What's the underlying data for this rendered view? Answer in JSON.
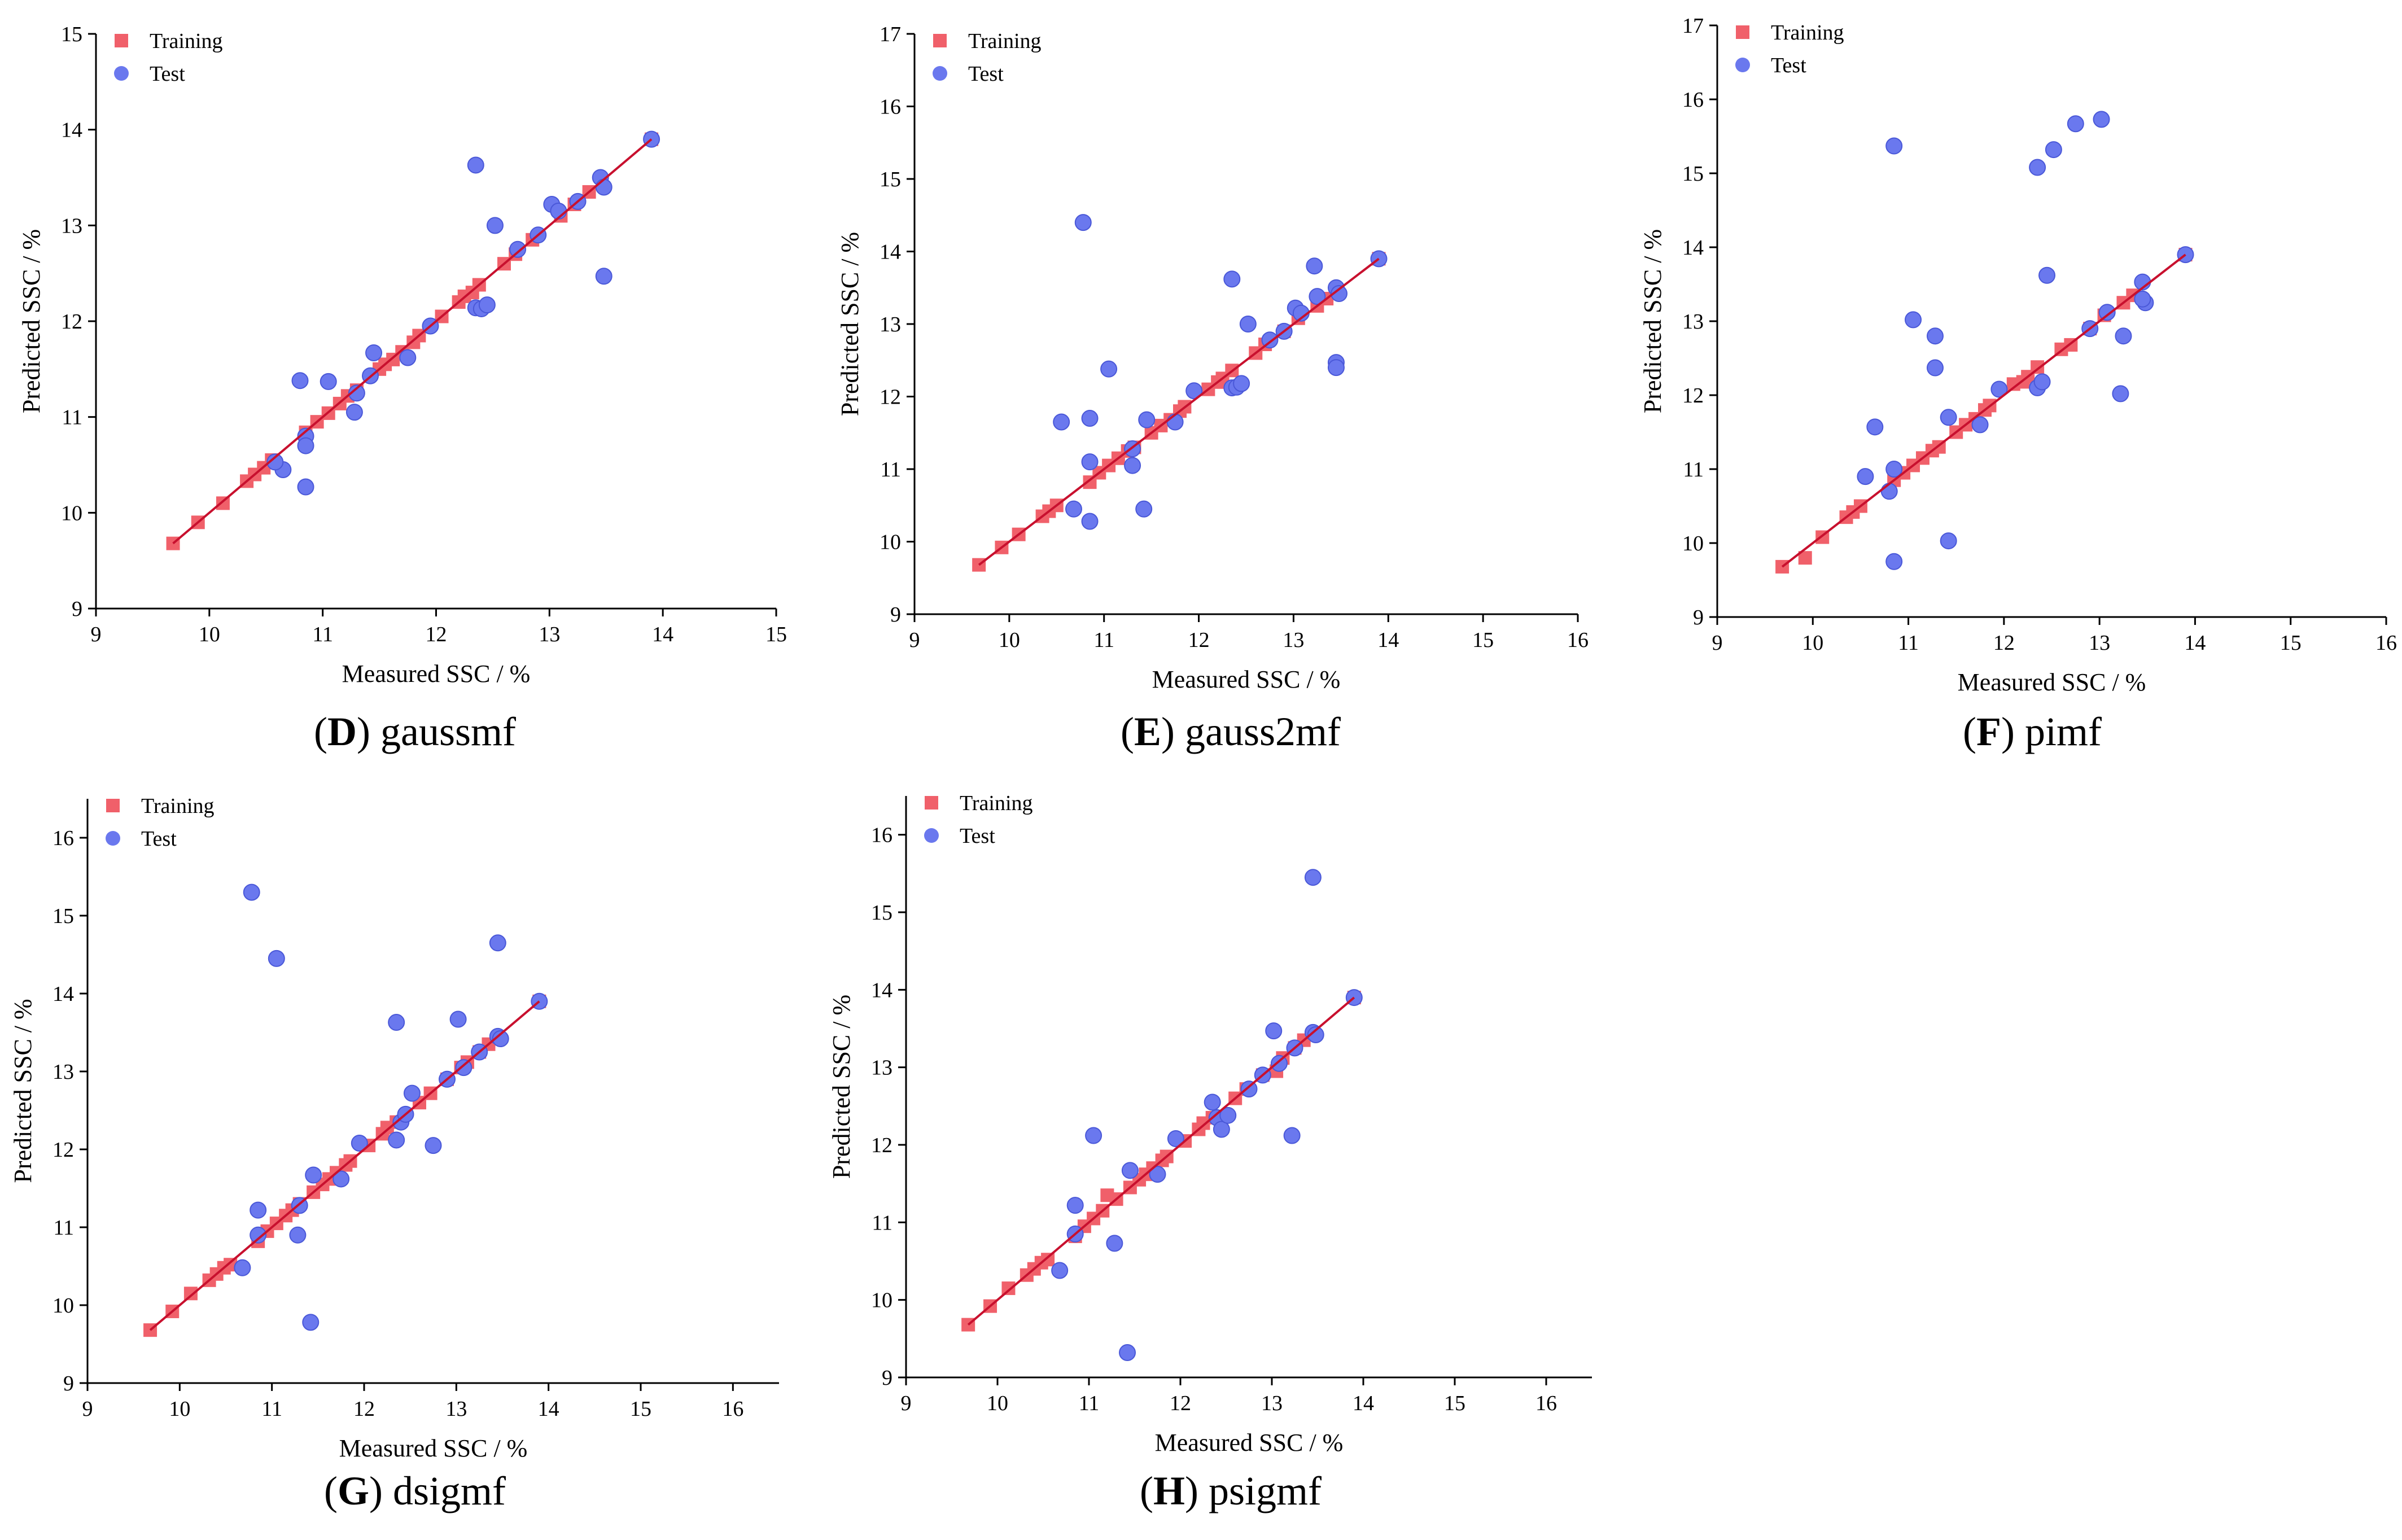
{
  "colors": {
    "training": "#f0606a",
    "test": "#6a78ee",
    "fit_line": "#c8102e"
  },
  "legend": {
    "training_label": "Training",
    "test_label": "Test"
  },
  "chart_data": [
    {
      "type": "scatter",
      "caption_letter": "D",
      "caption_name": "gaussmf",
      "xlabel": "Measured SSC / %",
      "ylabel": "Predicted  SSC / %",
      "xlim": [
        9,
        15
      ],
      "ylim": [
        9,
        15
      ],
      "xticks": [
        9,
        10,
        11,
        12,
        13,
        14,
        15
      ],
      "yticks": [
        9,
        10,
        11,
        12,
        13,
        14,
        15
      ],
      "training": [
        [
          9.68,
          9.68
        ],
        [
          9.9,
          9.9
        ],
        [
          10.12,
          10.1
        ],
        [
          10.33,
          10.33
        ],
        [
          10.4,
          10.4
        ],
        [
          10.48,
          10.47
        ],
        [
          10.55,
          10.55
        ],
        [
          10.85,
          10.84
        ],
        [
          10.95,
          10.95
        ],
        [
          11.05,
          11.04
        ],
        [
          11.15,
          11.14
        ],
        [
          11.22,
          11.22
        ],
        [
          11.3,
          11.28
        ],
        [
          11.5,
          11.5
        ],
        [
          11.55,
          11.55
        ],
        [
          11.62,
          11.6
        ],
        [
          11.7,
          11.68
        ],
        [
          11.8,
          11.78
        ],
        [
          11.85,
          11.85
        ],
        [
          12.05,
          12.05
        ],
        [
          12.2,
          12.2
        ],
        [
          12.25,
          12.26
        ],
        [
          12.32,
          12.3
        ],
        [
          12.38,
          12.38
        ],
        [
          12.6,
          12.6
        ],
        [
          12.7,
          12.7
        ],
        [
          12.85,
          12.85
        ],
        [
          13.1,
          13.1
        ],
        [
          13.22,
          13.22
        ],
        [
          13.35,
          13.35
        ],
        [
          13.9,
          13.9
        ]
      ],
      "test": [
        [
          10.8,
          11.38
        ],
        [
          11.05,
          11.37
        ],
        [
          10.85,
          10.8
        ],
        [
          10.85,
          10.7
        ],
        [
          10.85,
          10.27
        ],
        [
          10.65,
          10.45
        ],
        [
          10.58,
          10.53
        ],
        [
          11.28,
          11.05
        ],
        [
          11.3,
          11.25
        ],
        [
          11.42,
          11.43
        ],
        [
          11.45,
          11.67
        ],
        [
          11.75,
          11.62
        ],
        [
          11.95,
          11.95
        ],
        [
          12.35,
          12.14
        ],
        [
          12.4,
          12.13
        ],
        [
          12.45,
          12.17
        ],
        [
          12.35,
          13.63
        ],
        [
          12.52,
          13
        ],
        [
          12.72,
          12.75
        ],
        [
          12.9,
          12.9
        ],
        [
          13.02,
          13.22
        ],
        [
          13.08,
          13.15
        ],
        [
          13.25,
          13.25
        ],
        [
          13.45,
          13.5
        ],
        [
          13.48,
          13.4
        ],
        [
          13.48,
          12.47
        ],
        [
          13.9,
          13.9
        ]
      ],
      "fit_line": [
        [
          9.68,
          9.68
        ],
        [
          13.9,
          13.9
        ]
      ]
    },
    {
      "type": "scatter",
      "caption_letter": "E",
      "caption_name": "gauss2mf",
      "xlabel": "Measured SSC / %",
      "ylabel": "Predicted  SSC / %",
      "xlim": [
        9,
        16
      ],
      "ylim": [
        9,
        17
      ],
      "xticks": [
        9,
        10,
        11,
        12,
        13,
        14,
        15,
        16
      ],
      "yticks": [
        9,
        10,
        11,
        12,
        13,
        14,
        15,
        16,
        17
      ],
      "training": [
        [
          9.68,
          9.68
        ],
        [
          9.92,
          9.92
        ],
        [
          10.1,
          10.1
        ],
        [
          10.35,
          10.35
        ],
        [
          10.42,
          10.42
        ],
        [
          10.5,
          10.5
        ],
        [
          10.85,
          10.82
        ],
        [
          10.95,
          10.95
        ],
        [
          11.05,
          11.05
        ],
        [
          11.15,
          11.15
        ],
        [
          11.25,
          11.25
        ],
        [
          11.32,
          11.3
        ],
        [
          11.5,
          11.5
        ],
        [
          11.6,
          11.6
        ],
        [
          11.7,
          11.68
        ],
        [
          11.8,
          11.8
        ],
        [
          11.85,
          11.86
        ],
        [
          12.1,
          12.1
        ],
        [
          12.2,
          12.2
        ],
        [
          12.25,
          12.25
        ],
        [
          12.35,
          12.36
        ],
        [
          12.6,
          12.6
        ],
        [
          12.7,
          12.72
        ],
        [
          12.9,
          12.9
        ],
        [
          13.05,
          13.08
        ],
        [
          13.25,
          13.25
        ],
        [
          13.35,
          13.35
        ],
        [
          13.9,
          13.9
        ]
      ],
      "test": [
        [
          10.78,
          14.4
        ],
        [
          11.05,
          12.38
        ],
        [
          10.55,
          11.65
        ],
        [
          10.85,
          11.7
        ],
        [
          10.85,
          11.1
        ],
        [
          10.85,
          10.28
        ],
        [
          10.68,
          10.45
        ],
        [
          11.3,
          11.05
        ],
        [
          11.3,
          11.28
        ],
        [
          11.42,
          10.45
        ],
        [
          11.45,
          11.68
        ],
        [
          11.75,
          11.65
        ],
        [
          11.95,
          12.08
        ],
        [
          12.35,
          12.12
        ],
        [
          12.4,
          12.13
        ],
        [
          12.45,
          12.18
        ],
        [
          12.35,
          13.62
        ],
        [
          12.52,
          13
        ],
        [
          12.75,
          12.78
        ],
        [
          12.9,
          12.9
        ],
        [
          13.02,
          13.22
        ],
        [
          13.08,
          13.15
        ],
        [
          13.22,
          13.8
        ],
        [
          13.25,
          13.38
        ],
        [
          13.45,
          13.5
        ],
        [
          13.48,
          13.42
        ],
        [
          13.45,
          12.47
        ],
        [
          13.45,
          12.4
        ],
        [
          13.9,
          13.9
        ]
      ],
      "fit_line": [
        [
          9.68,
          9.68
        ],
        [
          13.9,
          13.9
        ]
      ]
    },
    {
      "type": "scatter",
      "caption_letter": "F",
      "caption_name": "pimf",
      "xlabel": "Measured SSC / %",
      "ylabel": "Predicted  SSC / %",
      "xlim": [
        9,
        16
      ],
      "ylim": [
        9,
        17
      ],
      "xticks": [
        9,
        10,
        11,
        12,
        13,
        14,
        15,
        16
      ],
      "yticks": [
        9,
        10,
        11,
        12,
        13,
        14,
        15,
        16,
        17
      ],
      "training": [
        [
          9.68,
          9.68
        ],
        [
          9.92,
          9.8
        ],
        [
          10.1,
          10.08
        ],
        [
          10.35,
          10.35
        ],
        [
          10.42,
          10.42
        ],
        [
          10.5,
          10.5
        ],
        [
          10.85,
          10.85
        ],
        [
          10.95,
          10.95
        ],
        [
          11.05,
          11.05
        ],
        [
          11.15,
          11.15
        ],
        [
          11.25,
          11.25
        ],
        [
          11.32,
          11.3
        ],
        [
          11.5,
          11.5
        ],
        [
          11.6,
          11.6
        ],
        [
          11.7,
          11.68
        ],
        [
          11.8,
          11.8
        ],
        [
          11.85,
          11.86
        ],
        [
          12.1,
          12.15
        ],
        [
          12.2,
          12.18
        ],
        [
          12.25,
          12.25
        ],
        [
          12.35,
          12.38
        ],
        [
          12.6,
          12.62
        ],
        [
          12.7,
          12.68
        ],
        [
          12.9,
          12.9
        ],
        [
          13.05,
          13.08
        ],
        [
          13.25,
          13.25
        ],
        [
          13.35,
          13.35
        ],
        [
          13.9,
          13.9
        ]
      ],
      "test": [
        [
          10.85,
          15.37
        ],
        [
          11.05,
          13.02
        ],
        [
          11.28,
          12.8
        ],
        [
          11.28,
          12.37
        ],
        [
          10.65,
          11.57
        ],
        [
          10.55,
          10.9
        ],
        [
          10.85,
          11
        ],
        [
          10.8,
          10.7
        ],
        [
          10.85,
          9.75
        ],
        [
          11.42,
          11.7
        ],
        [
          11.42,
          10.03
        ],
        [
          11.75,
          11.6
        ],
        [
          11.95,
          12.08
        ],
        [
          12.35,
          12.1
        ],
        [
          12.4,
          12.18
        ],
        [
          12.45,
          13.62
        ],
        [
          12.35,
          15.08
        ],
        [
          12.52,
          15.32
        ],
        [
          12.75,
          15.67
        ],
        [
          13.02,
          15.73
        ],
        [
          12.9,
          12.9
        ],
        [
          13.08,
          13.12
        ],
        [
          13.25,
          12.8
        ],
        [
          13.22,
          12.02
        ],
        [
          13.45,
          13.53
        ],
        [
          13.48,
          13.25
        ],
        [
          13.45,
          13.3
        ],
        [
          13.9,
          13.9
        ]
      ],
      "fit_line": [
        [
          9.68,
          9.68
        ],
        [
          13.9,
          13.9
        ]
      ]
    },
    {
      "type": "scatter",
      "caption_letter": "G",
      "caption_name": "dsigmf",
      "xlabel": "Measured SSC / %",
      "ylabel": "Predicted  SSC / %",
      "xlim": [
        9,
        16.5
      ],
      "ylim": [
        9,
        16.5
      ],
      "xticks": [
        9,
        10,
        11,
        12,
        13,
        14,
        15,
        16
      ],
      "yticks": [
        9,
        10,
        11,
        12,
        13,
        14,
        15,
        16
      ],
      "training": [
        [
          9.68,
          9.68
        ],
        [
          9.92,
          9.92
        ],
        [
          10.12,
          10.15
        ],
        [
          10.32,
          10.32
        ],
        [
          10.4,
          10.4
        ],
        [
          10.48,
          10.48
        ],
        [
          10.55,
          10.52
        ],
        [
          10.85,
          10.82
        ],
        [
          10.95,
          10.95
        ],
        [
          11.05,
          11.05
        ],
        [
          11.15,
          11.15
        ],
        [
          11.22,
          11.22
        ],
        [
          11.3,
          11.3
        ],
        [
          11.45,
          11.45
        ],
        [
          11.55,
          11.55
        ],
        [
          11.62,
          11.62
        ],
        [
          11.7,
          11.7
        ],
        [
          11.8,
          11.8
        ],
        [
          11.85,
          11.85
        ],
        [
          12.05,
          12.05
        ],
        [
          12.2,
          12.2
        ],
        [
          12.25,
          12.28
        ],
        [
          12.35,
          12.35
        ],
        [
          12.6,
          12.6
        ],
        [
          12.72,
          12.72
        ],
        [
          12.9,
          12.9
        ],
        [
          13.05,
          13.05
        ],
        [
          13.12,
          13.12
        ],
        [
          13.25,
          13.25
        ],
        [
          13.35,
          13.35
        ],
        [
          13.9,
          13.9
        ]
      ],
      "test": [
        [
          10.78,
          15.3
        ],
        [
          11.05,
          14.45
        ],
        [
          10.85,
          11.22
        ],
        [
          10.85,
          10.9
        ],
        [
          10.68,
          10.48
        ],
        [
          11.28,
          10.9
        ],
        [
          11.3,
          11.28
        ],
        [
          11.42,
          9.78
        ],
        [
          11.45,
          11.67
        ],
        [
          11.75,
          11.62
        ],
        [
          11.95,
          12.08
        ],
        [
          12.35,
          12.12
        ],
        [
          12.4,
          12.35
        ],
        [
          12.45,
          12.45
        ],
        [
          12.35,
          13.63
        ],
        [
          12.52,
          12.72
        ],
        [
          12.75,
          12.05
        ],
        [
          12.9,
          12.9
        ],
        [
          13.02,
          13.67
        ],
        [
          13.08,
          13.05
        ],
        [
          13.25,
          13.25
        ],
        [
          13.45,
          14.65
        ],
        [
          13.45,
          13.45
        ],
        [
          13.48,
          13.42
        ],
        [
          13.9,
          13.9
        ]
      ],
      "fit_line": [
        [
          9.68,
          9.68
        ],
        [
          13.9,
          13.9
        ]
      ]
    },
    {
      "type": "scatter",
      "caption_letter": "H",
      "caption_name": "psigmf",
      "xlabel": "Measured SSC / %",
      "ylabel": "Predicted  SSC / %",
      "xlim": [
        9,
        16.5
      ],
      "ylim": [
        9,
        16.5
      ],
      "xticks": [
        9,
        10,
        11,
        12,
        13,
        14,
        15,
        16
      ],
      "yticks": [
        9,
        10,
        11,
        12,
        13,
        14,
        15,
        16
      ],
      "training": [
        [
          9.68,
          9.68
        ],
        [
          9.92,
          9.92
        ],
        [
          10.12,
          10.15
        ],
        [
          10.32,
          10.32
        ],
        [
          10.4,
          10.4
        ],
        [
          10.48,
          10.48
        ],
        [
          10.55,
          10.52
        ],
        [
          10.85,
          10.82
        ],
        [
          10.95,
          10.95
        ],
        [
          11.05,
          11.05
        ],
        [
          11.15,
          11.15
        ],
        [
          11.2,
          11.35
        ],
        [
          11.3,
          11.3
        ],
        [
          11.45,
          11.45
        ],
        [
          11.55,
          11.55
        ],
        [
          11.62,
          11.62
        ],
        [
          11.7,
          11.7
        ],
        [
          11.8,
          11.8
        ],
        [
          11.85,
          11.85
        ],
        [
          12.05,
          12.05
        ],
        [
          12.2,
          12.2
        ],
        [
          12.25,
          12.28
        ],
        [
          12.35,
          12.35
        ],
        [
          12.6,
          12.6
        ],
        [
          12.72,
          12.72
        ],
        [
          12.9,
          12.9
        ],
        [
          13.05,
          12.95
        ],
        [
          13.12,
          13.12
        ],
        [
          13.25,
          13.25
        ],
        [
          13.35,
          13.35
        ],
        [
          13.9,
          13.9
        ]
      ],
      "test": [
        [
          11.05,
          12.12
        ],
        [
          10.85,
          11.22
        ],
        [
          10.85,
          10.85
        ],
        [
          10.68,
          10.38
        ],
        [
          11.28,
          10.73
        ],
        [
          11.42,
          9.32
        ],
        [
          11.45,
          11.67
        ],
        [
          11.75,
          11.62
        ],
        [
          11.95,
          12.08
        ],
        [
          12.35,
          12.55
        ],
        [
          12.4,
          12.35
        ],
        [
          12.45,
          12.2
        ],
        [
          12.52,
          12.38
        ],
        [
          12.75,
          12.72
        ],
        [
          12.9,
          12.9
        ],
        [
          13.02,
          13.47
        ],
        [
          13.08,
          13.05
        ],
        [
          13.22,
          12.12
        ],
        [
          13.25,
          13.25
        ],
        [
          13.45,
          15.45
        ],
        [
          13.45,
          13.45
        ],
        [
          13.48,
          13.42
        ],
        [
          13.9,
          13.9
        ]
      ],
      "fit_line": [
        [
          9.68,
          9.68
        ],
        [
          13.9,
          13.9
        ]
      ]
    }
  ]
}
